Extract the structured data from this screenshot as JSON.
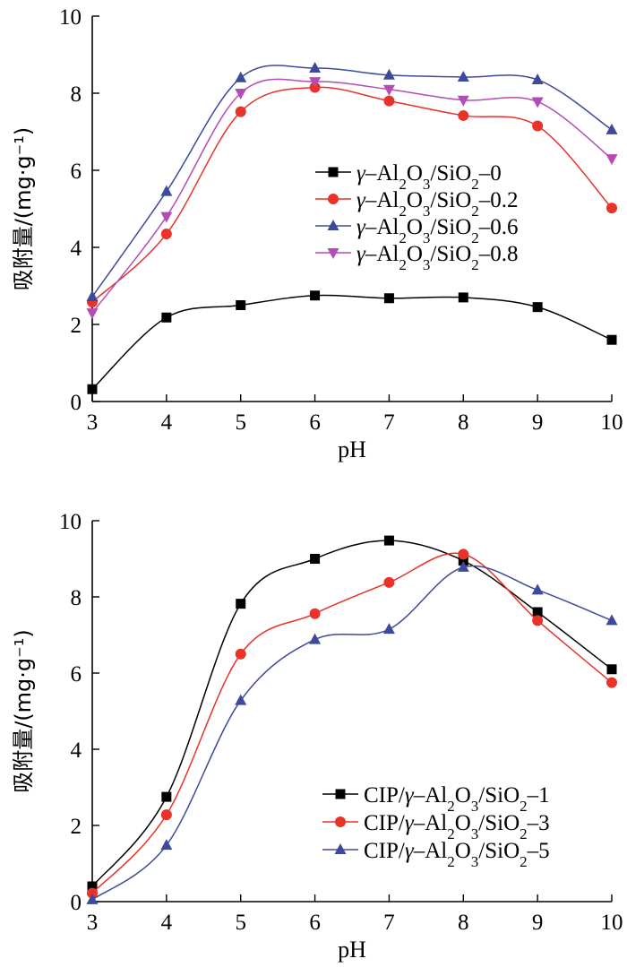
{
  "chart_data": [
    {
      "type": "line",
      "xlabel": "pH",
      "ylabel": "吸附量/(mg·g⁻¹)",
      "xlim": [
        3,
        10
      ],
      "ylim": [
        0,
        10
      ],
      "x": [
        3,
        4,
        5,
        6,
        7,
        8,
        9,
        10
      ],
      "xticks": [
        "3",
        "4",
        "5",
        "6",
        "7",
        "8",
        "9",
        "10"
      ],
      "yticks": [
        "0",
        "2",
        "4",
        "6",
        "8",
        "10"
      ],
      "grid": false,
      "legend_position": "center-right",
      "series": [
        {
          "name": "γ–Al2O3/SiO2–0",
          "legend": {
            "pre": "γ–Al",
            "s1": "2",
            "mid": "O",
            "s2": "3",
            "post": "/SiO",
            "s3": "2",
            "tail": "–0"
          },
          "color": "#000000",
          "marker": "square",
          "values": [
            0.32,
            2.18,
            2.5,
            2.75,
            2.68,
            2.7,
            2.45,
            1.6
          ]
        },
        {
          "name": "γ–Al2O3/SiO2–0.2",
          "legend": {
            "pre": "γ–Al",
            "s1": "2",
            "mid": "O",
            "s2": "3",
            "post": "/SiO",
            "s3": "2",
            "tail": "–0.2"
          },
          "color": "#e8322a",
          "marker": "circle",
          "values": [
            2.58,
            4.35,
            7.52,
            8.15,
            7.8,
            7.42,
            7.15,
            5.02
          ]
        },
        {
          "name": "γ–Al2O3/SiO2–0.6",
          "legend": {
            "pre": "γ–Al",
            "s1": "2",
            "mid": "O",
            "s2": "3",
            "post": "/SiO",
            "s3": "2",
            "tail": "–0.6"
          },
          "color": "#3d4a9c",
          "marker": "triangle",
          "values": [
            2.72,
            5.45,
            8.4,
            8.65,
            8.47,
            8.42,
            8.35,
            7.05
          ]
        },
        {
          "name": "γ–Al2O3/SiO2–0.8",
          "legend": {
            "pre": "γ–Al",
            "s1": "2",
            "mid": "O",
            "s2": "3",
            "post": "/SiO",
            "s3": "2",
            "tail": "–0.8"
          },
          "color": "#b44cb4",
          "marker": "triangle-down",
          "values": [
            2.3,
            4.8,
            8.0,
            8.3,
            8.1,
            7.82,
            7.78,
            6.3
          ]
        }
      ]
    },
    {
      "type": "line",
      "xlabel": "pH",
      "ylabel": "吸附量/(mg·g⁻¹)",
      "xlim": [
        3,
        10
      ],
      "ylim": [
        0,
        10
      ],
      "x": [
        3,
        4,
        5,
        6,
        7,
        8,
        9,
        10
      ],
      "xticks": [
        "3",
        "4",
        "5",
        "6",
        "7",
        "8",
        "9",
        "10"
      ],
      "yticks": [
        "0",
        "2",
        "4",
        "6",
        "8",
        "10"
      ],
      "grid": false,
      "legend_position": "bottom-right",
      "series": [
        {
          "name": "CIP/γ–Al2O3/SiO2–1",
          "legend": {
            "pre": "CIP/γ–Al",
            "s1": "2",
            "mid": "O",
            "s2": "3",
            "post": "/SiO",
            "s3": "2",
            "tail": "–1"
          },
          "color": "#000000",
          "marker": "square",
          "values": [
            0.4,
            2.75,
            7.82,
            9.0,
            9.48,
            8.95,
            7.6,
            6.1
          ]
        },
        {
          "name": "CIP/γ–Al2O3/SiO2–3",
          "legend": {
            "pre": "CIP/γ–Al",
            "s1": "2",
            "mid": "O",
            "s2": "3",
            "post": "/SiO",
            "s3": "2",
            "tail": "–3"
          },
          "color": "#e8322a",
          "marker": "circle",
          "values": [
            0.22,
            2.28,
            6.5,
            7.56,
            8.38,
            9.12,
            7.38,
            5.75
          ]
        },
        {
          "name": "CIP/γ–Al2O3/SiO2–5",
          "legend": {
            "pre": "CIP/γ–Al",
            "s1": "2",
            "mid": "O",
            "s2": "3",
            "post": "/SiO",
            "s3": "2",
            "tail": "–5"
          },
          "color": "#3d4a9c",
          "marker": "triangle",
          "values": [
            0.05,
            1.48,
            5.28,
            6.88,
            7.15,
            8.78,
            8.18,
            7.38
          ]
        }
      ]
    }
  ]
}
